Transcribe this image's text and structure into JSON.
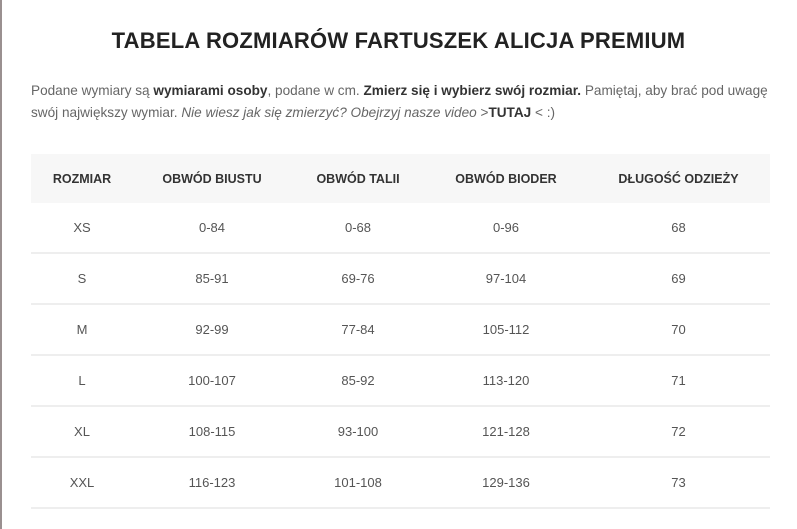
{
  "title": "TABELA ROZMIARÓW FARTUSZEK ALICJA PREMIUM",
  "intro": {
    "t1": "Podane wymiary są ",
    "b1": "wymiarami osoby",
    "t2": ", podane w cm. ",
    "b2": "Zmierz się i wybierz swój rozmiar.",
    "t3": " Pamiętaj, aby brać pod uwagę swój największy wymiar. ",
    "i1": "Nie wiesz jak się zmierzyć? Obejrzyj nasze video",
    "t4": " >",
    "link": "TUTAJ",
    "t5": " < :)"
  },
  "table": {
    "headers": [
      "ROZMIAR",
      "OBWÓD BIUSTU",
      "OBWÓD TALII",
      "OBWÓD BIODER",
      "DŁUGOŚĆ ODZIEŻY"
    ],
    "rows": [
      [
        "XS",
        "0-84",
        "0-68",
        "0-96",
        "68"
      ],
      [
        "S",
        "85-91",
        "69-76",
        "97-104",
        "69"
      ],
      [
        "M",
        "92-99",
        "77-84",
        "105-112",
        "70"
      ],
      [
        "L",
        "100-107",
        "85-92",
        "113-120",
        "71"
      ],
      [
        "XL",
        "108-115",
        "93-100",
        "121-128",
        "72"
      ],
      [
        "XXL",
        "116-123",
        "101-108",
        "129-136",
        "73"
      ]
    ]
  }
}
